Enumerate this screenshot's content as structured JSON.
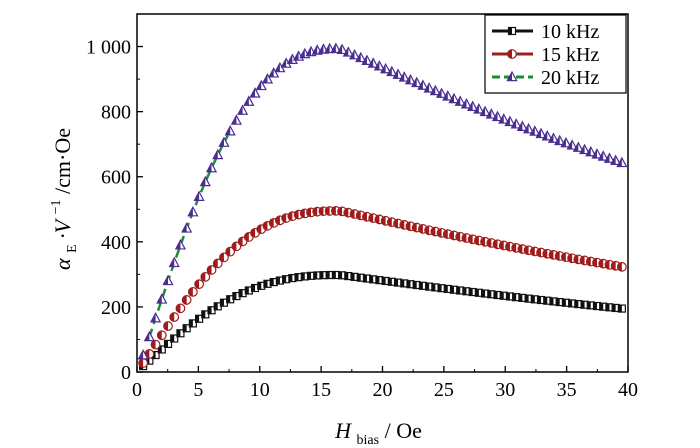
{
  "chart_data": {
    "type": "scatter",
    "title": "",
    "xlabel": {
      "main": "H",
      "sub": "bias",
      "unit": " / Oe"
    },
    "ylabel": {
      "main": "α",
      "sub": "E",
      "unit": "·V",
      "sup": "−1",
      "rest": "/cm·Oe"
    },
    "xlim": [
      0,
      40
    ],
    "ylim": [
      0,
      1100
    ],
    "xticks": [
      0,
      5,
      10,
      15,
      20,
      25,
      30,
      35,
      40
    ],
    "xtick_labels": [
      "0",
      "5",
      "10",
      "15",
      "20",
      "25",
      "30",
      "35",
      "40"
    ],
    "yticks": [
      0,
      200,
      400,
      600,
      800,
      1000
    ],
    "ytick_labels": [
      "0",
      "200",
      "400",
      "600",
      "800",
      "1 000"
    ],
    "legend_position": "top-right",
    "series": [
      {
        "name": "10 kHz",
        "label": "10 kHz",
        "marker": "square",
        "color": "#111111",
        "line_color": "#111111",
        "peak_x": 16.5,
        "peak_y": 298,
        "end_y": 193,
        "rise": 12,
        "x_start": 0.5,
        "x_end": 39.5,
        "n": 78
      },
      {
        "name": "15 kHz",
        "label": "15 kHz",
        "marker": "circle",
        "color": "#a01c1c",
        "line_color": "#9b2020",
        "peak_x": 16.5,
        "peak_y": 495,
        "end_y": 320,
        "rise": 11.5,
        "x_start": 0.5,
        "x_end": 39.5,
        "n": 78
      },
      {
        "name": "20 kHz",
        "label": "20 kHz",
        "marker": "triangle",
        "color": "#4a2d8f",
        "line_color": "#1e8a3a",
        "peak_x": 16.5,
        "peak_y": 993,
        "end_y": 636,
        "rise": 11,
        "x_start": 0.5,
        "x_end": 39.5,
        "n": 78
      }
    ]
  }
}
